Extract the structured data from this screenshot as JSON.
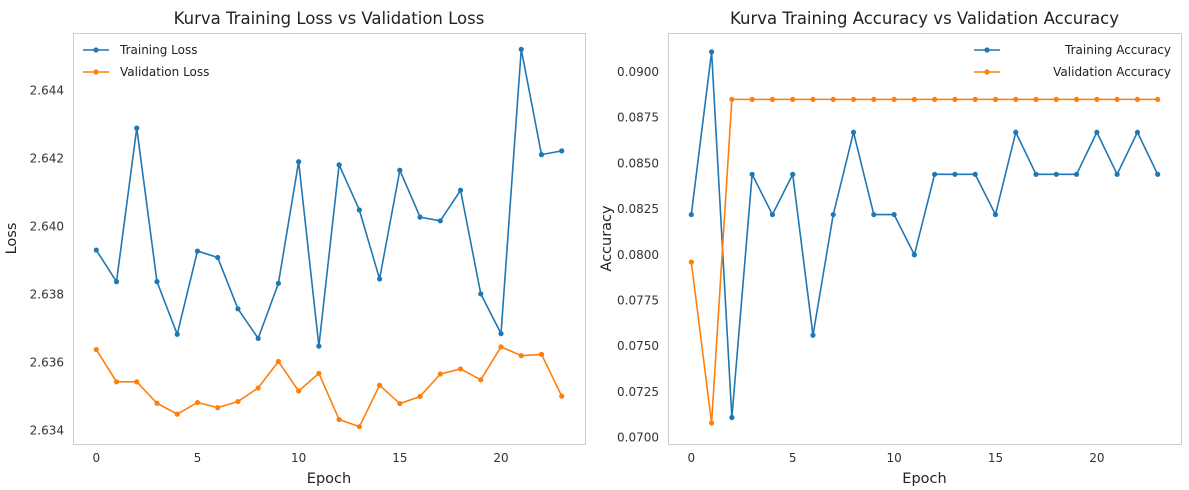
{
  "chart_data": [
    {
      "type": "line",
      "title": "Kurva Training Loss vs Validation Loss",
      "xlabel": "Epoch",
      "ylabel": "Loss",
      "x": [
        0,
        1,
        2,
        3,
        4,
        5,
        6,
        7,
        8,
        9,
        10,
        11,
        12,
        13,
        14,
        15,
        16,
        17,
        18,
        19,
        20,
        21,
        22,
        23
      ],
      "xlim": [
        -1.15,
        24.15
      ],
      "ylim": [
        2.6336,
        2.6457
      ],
      "xticks": [
        0,
        5,
        10,
        15,
        20
      ],
      "yticks": [
        2.634,
        2.636,
        2.638,
        2.64,
        2.642,
        2.644
      ],
      "ytick_decimals": 3,
      "grid": false,
      "legend_position": "top-left",
      "series": [
        {
          "name": "Training Loss",
          "color": "#1f77b4",
          "values": [
            2.63931,
            2.63838,
            2.6429,
            2.63838,
            2.63683,
            2.63928,
            2.63909,
            2.63758,
            2.63671,
            2.63833,
            2.64191,
            2.63648,
            2.64182,
            2.64049,
            2.63846,
            2.64166,
            2.64028,
            2.64017,
            2.64107,
            2.63802,
            2.63685,
            2.64522,
            2.64212,
            2.64223
          ]
        },
        {
          "name": "Validation Loss",
          "color": "#ff7f0e",
          "values": [
            2.63638,
            2.63543,
            2.63543,
            2.6348,
            2.63448,
            2.63482,
            2.63467,
            2.63485,
            2.63525,
            2.63603,
            2.63516,
            2.63568,
            2.63432,
            2.63411,
            2.63533,
            2.63479,
            2.635,
            2.63566,
            2.63581,
            2.63549,
            2.63646,
            2.6362,
            2.63624,
            2.63501
          ]
        }
      ]
    },
    {
      "type": "line",
      "title": "Kurva Training Accuracy vs Validation Accuracy",
      "xlabel": "Epoch",
      "ylabel": "Accuracy",
      "x": [
        0,
        1,
        2,
        3,
        4,
        5,
        6,
        7,
        8,
        9,
        10,
        11,
        12,
        13,
        14,
        15,
        16,
        17,
        18,
        19,
        20,
        21,
        22,
        23
      ],
      "xlim": [
        -1.15,
        24.15
      ],
      "ylim": [
        0.06965,
        0.09213
      ],
      "xticks": [
        0,
        5,
        10,
        15,
        20
      ],
      "yticks": [
        0.07,
        0.0725,
        0.075,
        0.0775,
        0.08,
        0.0825,
        0.085,
        0.0875,
        0.09
      ],
      "ytick_decimals": 4,
      "grid": false,
      "legend_position": "top-right",
      "series": [
        {
          "name": "Training Accuracy",
          "color": "#1f77b4",
          "values": [
            0.0822,
            0.0911,
            0.0711,
            0.0844,
            0.0822,
            0.0844,
            0.0756,
            0.0822,
            0.0867,
            0.0822,
            0.0822,
            0.08,
            0.0844,
            0.0844,
            0.0844,
            0.0822,
            0.0867,
            0.0844,
            0.0844,
            0.0844,
            0.0867,
            0.0844,
            0.0867,
            0.0844
          ]
        },
        {
          "name": "Validation Accuracy",
          "color": "#ff7f0e",
          "values": [
            0.0796,
            0.0708,
            0.0885,
            0.0885,
            0.0885,
            0.0885,
            0.0885,
            0.0885,
            0.0885,
            0.0885,
            0.0885,
            0.0885,
            0.0885,
            0.0885,
            0.0885,
            0.0885,
            0.0885,
            0.0885,
            0.0885,
            0.0885,
            0.0885,
            0.0885,
            0.0885,
            0.0885
          ]
        }
      ]
    }
  ]
}
